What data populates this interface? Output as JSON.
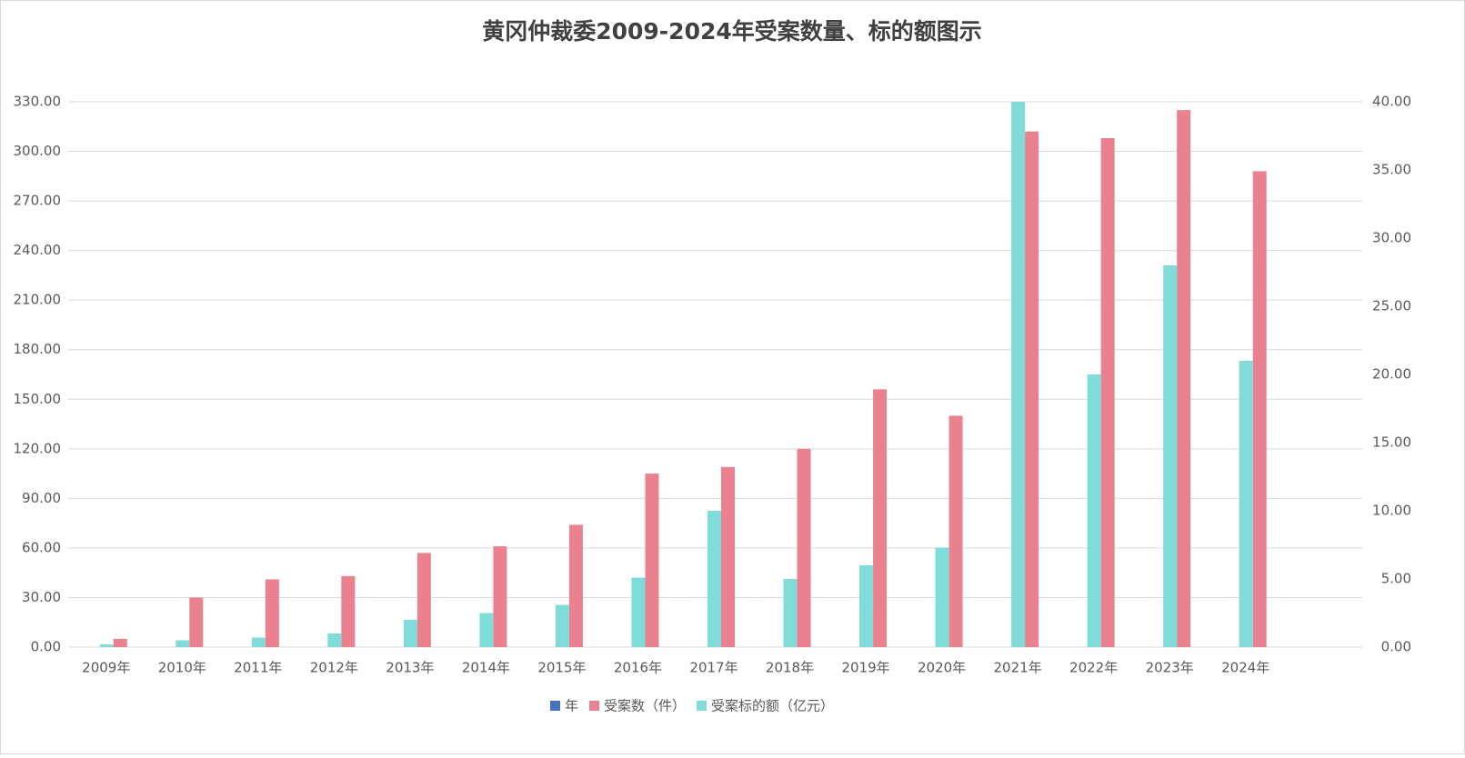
{
  "chart_data": {
    "type": "bar",
    "title": "黄冈仲裁委2009-2024年受案数量、标的额图示",
    "categories": [
      "2009年",
      "2010年",
      "2011年",
      "2012年",
      "2013年",
      "2014年",
      "2015年",
      "2016年",
      "2017年",
      "2018年",
      "2019年",
      "2020年",
      "2021年",
      "2022年",
      "2023年",
      "2024年",
      null
    ],
    "series": [
      {
        "name": "年",
        "color": "#4472c4",
        "values": [
          null,
          null,
          null,
          null,
          null,
          null,
          null,
          null,
          null,
          null,
          null,
          null,
          null,
          null,
          null,
          null,
          null
        ]
      },
      {
        "name": "受案数（件）",
        "color": "#e9828e",
        "values": [
          5,
          30,
          41,
          43,
          57,
          61,
          74,
          105,
          109,
          120,
          156,
          140,
          312,
          308,
          325,
          288,
          null
        ]
      },
      {
        "name": "受案标的额（亿元）",
        "color": "#7fdcd8",
        "axis": "y2",
        "values": [
          0.2,
          0.5,
          0.7,
          1.0,
          2.0,
          2.5,
          3.1,
          5.1,
          10.0,
          5.0,
          6.0,
          7.3,
          40,
          20,
          28,
          21,
          null
        ]
      }
    ],
    "ylim": [
      0,
      330
    ],
    "yticks": [
      {
        "value": 0,
        "label": "0.00"
      },
      {
        "value": 30,
        "label": "30.00"
      },
      {
        "value": 60,
        "label": "60.00"
      },
      {
        "value": 90,
        "label": "90.00"
      },
      {
        "value": 120,
        "label": "120.00"
      },
      {
        "value": 150,
        "label": "150.00"
      },
      {
        "value": 180,
        "label": "180.00"
      },
      {
        "value": 210,
        "label": "210.00"
      },
      {
        "value": 240,
        "label": "240.00"
      },
      {
        "value": 270,
        "label": "270.00"
      },
      {
        "value": 300,
        "label": "300.00"
      },
      {
        "value": 330,
        "label": "330.00"
      }
    ],
    "y2lim": [
      0,
      40
    ],
    "y2ticks": [
      {
        "value": 0,
        "label": "0.00"
      },
      {
        "value": 5,
        "label": "5.00"
      },
      {
        "value": 10,
        "label": "10.00"
      },
      {
        "value": 15,
        "label": "15.00"
      },
      {
        "value": 20,
        "label": "20.00"
      },
      {
        "value": 25,
        "label": "25.00"
      },
      {
        "value": 30,
        "label": "30.00"
      },
      {
        "value": 35,
        "label": "35.00"
      },
      {
        "value": 40,
        "label": "40.00"
      }
    ],
    "grid": true,
    "legend": "bottom"
  }
}
